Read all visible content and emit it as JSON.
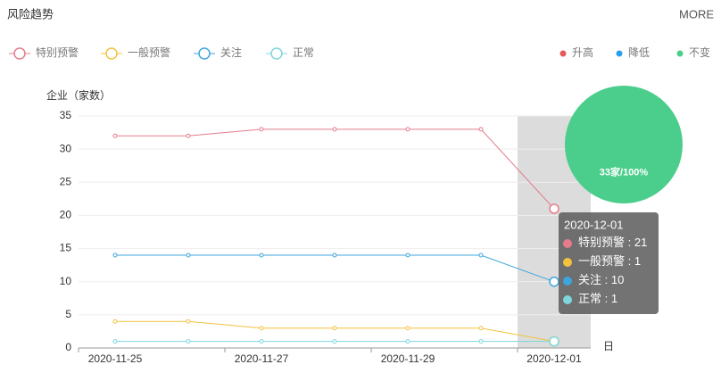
{
  "header": {
    "title": "风险趋势",
    "more": "MORE"
  },
  "chart_data": [
    {
      "type": "line",
      "y_label": "企业（家数）",
      "x_label": "日",
      "categories": [
        "2020-11-25",
        null,
        "2020-11-27",
        null,
        "2020-11-29",
        null,
        "2020-12-01"
      ],
      "series": [
        {
          "name": "特别预警",
          "color": "#e47c8c",
          "values": [
            32,
            32,
            33,
            33,
            33,
            33,
            21
          ]
        },
        {
          "name": "一般预警",
          "color": "#f2c23d",
          "values": [
            4,
            4,
            3,
            3,
            3,
            3,
            1
          ]
        },
        {
          "name": "关注",
          "color": "#3ca6df",
          "values": [
            14,
            14,
            14,
            14,
            14,
            14,
            10
          ]
        },
        {
          "name": "正常",
          "color": "#7fd6dc",
          "values": [
            1,
            1,
            1,
            1,
            1,
            1,
            1
          ]
        }
      ],
      "ylim": [
        0,
        35
      ],
      "yticks": [
        0,
        5,
        10,
        15,
        20,
        25,
        30,
        35
      ],
      "grid": true,
      "tooltip": {
        "title": "2020-12-01",
        "separator": " : "
      }
    },
    {
      "type": "pie",
      "categories": [
        "升高",
        "降低",
        "不变"
      ],
      "colors": [
        "#e55a5a",
        "#2a9ff0",
        "#4bce8b"
      ],
      "values": [
        0,
        0,
        33
      ],
      "value_labels": [
        null,
        null,
        "33家/100%"
      ]
    }
  ]
}
